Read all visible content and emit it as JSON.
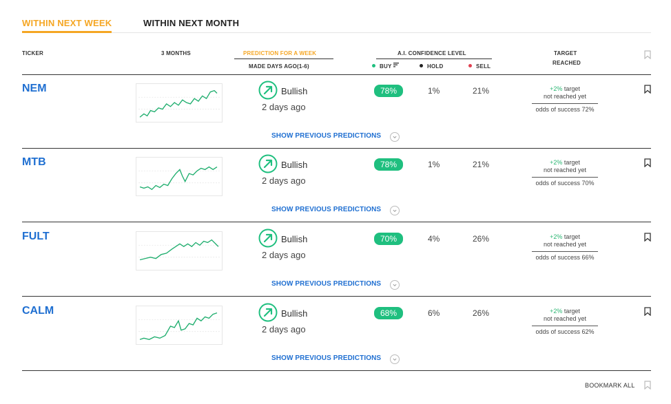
{
  "tabs": [
    {
      "label": "WITHIN NEXT WEEK",
      "active": true
    },
    {
      "label": "WITHIN NEXT MONTH",
      "active": false
    }
  ],
  "header": {
    "ticker": "TICKER",
    "months": "3 MONTHS",
    "prediction": "PREDICTION FOR A WEEK",
    "made_days": "MADE DAYS AGO(1-6)",
    "confidence": "A.I. CONFIDENCE LEVEL",
    "buy": "BUY",
    "hold": "HOLD",
    "sell": "SELL",
    "target_line1": "TARGET",
    "target_line2": "REACHED"
  },
  "colors": {
    "accent": "#f5a623",
    "link": "#1f6fd1",
    "badge": "#1fbf7f",
    "buy_dot": "#1fbf7f",
    "hold_dot": "#222222",
    "sell_dot": "#e04050",
    "sparkline": "#1fae6e"
  },
  "rows": [
    {
      "ticker": "NEM",
      "prediction": "Bullish",
      "made": "2 days ago",
      "buy": "78%",
      "hold": "1%",
      "sell": "21%",
      "target_pct": "+2%",
      "target_word": " target",
      "target_status": "not reached yet",
      "odds": "odds of success 72%",
      "show_previous": "SHOW PREVIOUS PREDICTIONS"
    },
    {
      "ticker": "MTB",
      "prediction": "Bullish",
      "made": "2 days ago",
      "buy": "78%",
      "hold": "1%",
      "sell": "21%",
      "target_pct": "+2%",
      "target_word": " target",
      "target_status": "not reached yet",
      "odds": "odds of success 70%",
      "show_previous": "SHOW PREVIOUS PREDICTIONS"
    },
    {
      "ticker": "FULT",
      "prediction": "Bullish",
      "made": "2 days ago",
      "buy": "70%",
      "hold": "4%",
      "sell": "26%",
      "target_pct": "+2%",
      "target_word": " target",
      "target_status": "not reached yet",
      "odds": "odds of success 66%",
      "show_previous": "SHOW PREVIOUS PREDICTIONS"
    },
    {
      "ticker": "CALM",
      "prediction": "Bullish",
      "made": "2 days ago",
      "buy": "68%",
      "hold": "6%",
      "sell": "26%",
      "target_pct": "+2%",
      "target_word": " target",
      "target_status": "not reached yet",
      "odds": "odds of success 62%",
      "show_previous": "SHOW PREVIOUS PREDICTIONS"
    }
  ],
  "footer": {
    "bookmark_all": "BOOKMARK ALL"
  }
}
